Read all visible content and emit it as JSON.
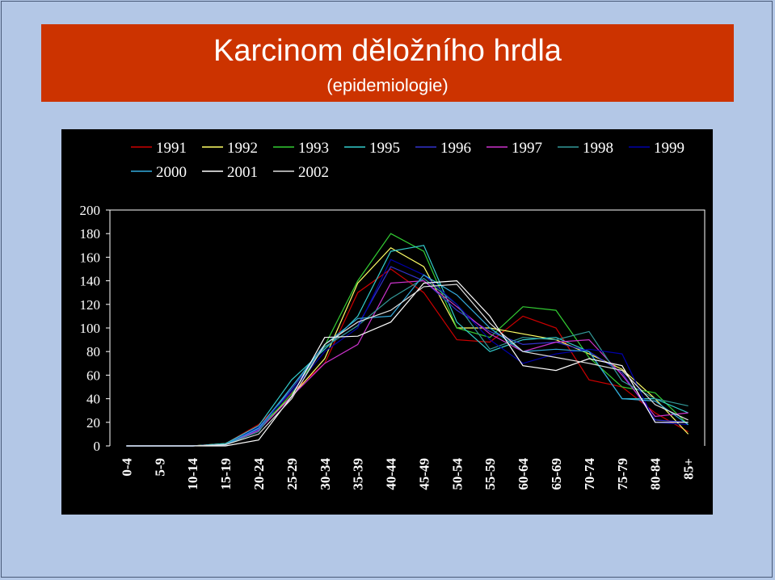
{
  "title": "Karcinom děložního hrdla",
  "subtitle": "(epidemiologie)",
  "chart_data": {
    "type": "line",
    "categories": [
      "0-4",
      "5-9",
      "10-14",
      "15-19",
      "20-24",
      "25-29",
      "30-34",
      "35-39",
      "40-44",
      "45-49",
      "50-54",
      "55-59",
      "60-64",
      "65-69",
      "70-74",
      "75-79",
      "80-84",
      "85+"
    ],
    "yticks": [
      "0",
      "20",
      "40",
      "60",
      "80",
      "100",
      "120",
      "140",
      "160",
      "180",
      "200"
    ],
    "ylim": [
      0,
      200
    ],
    "grid": false,
    "legend_position": "top",
    "series": [
      {
        "name": "1991",
        "color": "#cc0000",
        "values": [
          0,
          0,
          0,
          2,
          18,
          45,
          70,
          130,
          150,
          130,
          90,
          88,
          110,
          100,
          56,
          50,
          28,
          12
        ]
      },
      {
        "name": "1992",
        "color": "#ffff66",
        "values": [
          0,
          0,
          0,
          2,
          15,
          42,
          74,
          138,
          168,
          152,
          100,
          100,
          95,
          90,
          78,
          65,
          40,
          10
        ]
      },
      {
        "name": "1993",
        "color": "#33cc33",
        "values": [
          0,
          0,
          0,
          1,
          14,
          44,
          85,
          140,
          180,
          165,
          100,
          92,
          118,
          115,
          75,
          50,
          45,
          18
        ]
      },
      {
        "name": "1995",
        "color": "#33cccc",
        "values": [
          0,
          0,
          0,
          2,
          17,
          56,
          82,
          110,
          165,
          170,
          105,
          80,
          90,
          92,
          80,
          40,
          40,
          28
        ]
      },
      {
        "name": "1996",
        "color": "#3333cc",
        "values": [
          0,
          0,
          0,
          1,
          14,
          48,
          84,
          102,
          152,
          140,
          115,
          97,
          86,
          88,
          80,
          62,
          22,
          20
        ]
      },
      {
        "name": "1997",
        "color": "#cc33cc",
        "values": [
          0,
          0,
          0,
          1,
          13,
          42,
          70,
          86,
          138,
          140,
          118,
          95,
          80,
          88,
          90,
          60,
          25,
          28
        ]
      },
      {
        "name": "1998",
        "color": "#339999",
        "values": [
          0,
          0,
          0,
          1,
          12,
          50,
          84,
          102,
          125,
          142,
          120,
          82,
          92,
          90,
          97,
          55,
          40,
          34
        ]
      },
      {
        "name": "1999",
        "color": "#0000aa",
        "values": [
          0,
          0,
          0,
          1,
          16,
          46,
          80,
          100,
          158,
          145,
          120,
          90,
          70,
          78,
          82,
          78,
          20,
          18
        ]
      },
      {
        "name": "2000",
        "color": "#33aadd",
        "values": [
          0,
          0,
          0,
          1,
          15,
          50,
          86,
          108,
          110,
          145,
          128,
          100,
          80,
          82,
          80,
          40,
          38,
          18
        ]
      },
      {
        "name": "2001",
        "color": "#ffffff",
        "values": [
          0,
          0,
          0,
          0,
          5,
          42,
          92,
          93,
          105,
          138,
          140,
          110,
          68,
          64,
          74,
          68,
          20,
          20
        ]
      },
      {
        "name": "2002",
        "color": "#e0e0e0",
        "values": [
          0,
          0,
          0,
          1,
          10,
          40,
          86,
          105,
          115,
          135,
          137,
          104,
          80,
          75,
          70,
          64,
          35,
          22
        ]
      }
    ]
  }
}
